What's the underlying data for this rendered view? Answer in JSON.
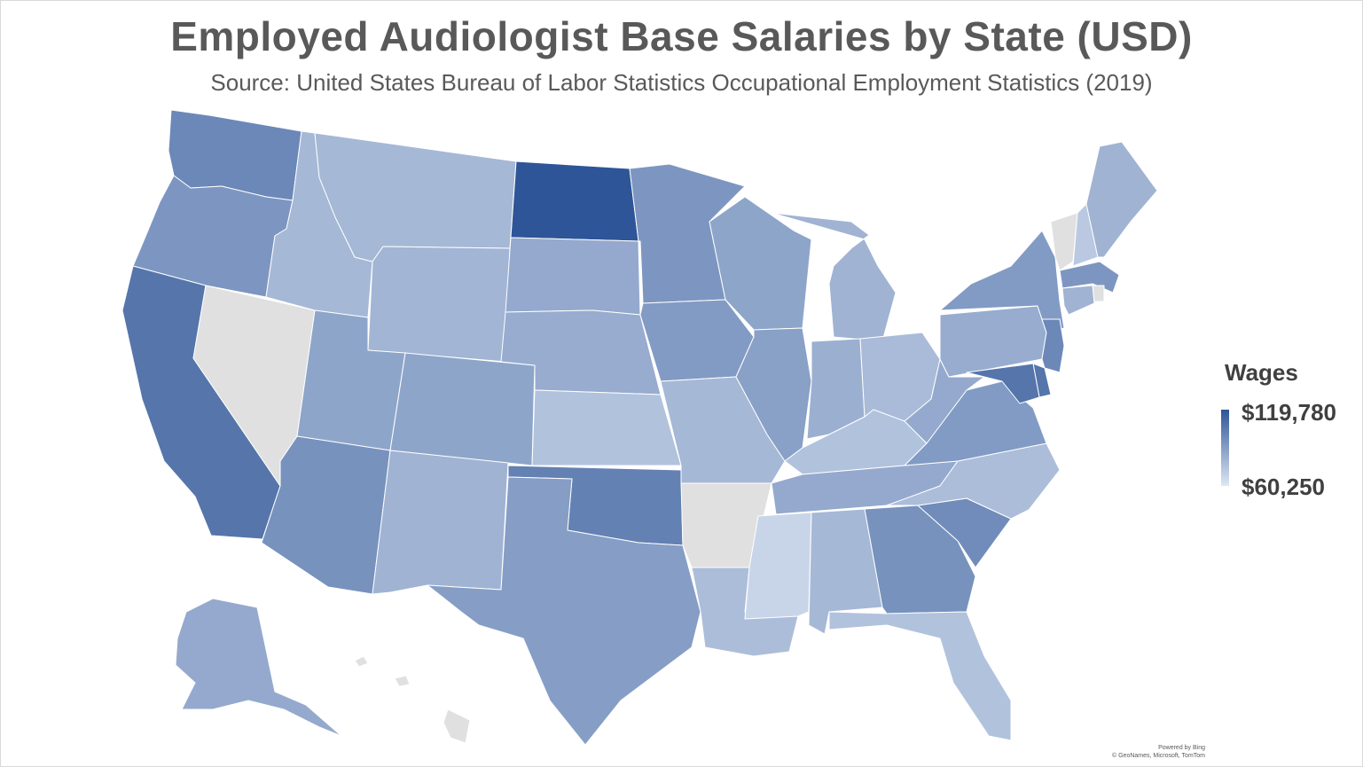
{
  "title": "Employed Audiologist Base Salaries by State (USD)",
  "subtitle": "Source: United States Bureau of Labor Statistics Occupational Employment Statistics (2019)",
  "legend": {
    "title": "Wages",
    "max_label": "$119,780",
    "min_label": "$60,250",
    "max_value": 119780,
    "min_value": 60250,
    "max_color": "#2e5597",
    "min_color": "#dde6f4",
    "no_data_color": "#e0e0e0"
  },
  "attribution": {
    "powered_by": "Powered by Bing",
    "credits": "© GeoNames, Microsoft, TomTom"
  },
  "states": [
    {
      "id": "WA",
      "shade": 0.65
    },
    {
      "id": "OR",
      "shade": 0.55
    },
    {
      "id": "CA",
      "shade": 0.78
    },
    {
      "id": "NV",
      "shade": null
    },
    {
      "id": "ID",
      "shade": 0.32
    },
    {
      "id": "MT",
      "shade": 0.32
    },
    {
      "id": "WY",
      "shade": 0.34
    },
    {
      "id": "UT",
      "shade": 0.45
    },
    {
      "id": "AZ",
      "shade": 0.58
    },
    {
      "id": "CO",
      "shade": 0.45
    },
    {
      "id": "NM",
      "shade": 0.35
    },
    {
      "id": "ND",
      "shade": 1.0
    },
    {
      "id": "SD",
      "shade": 0.42
    },
    {
      "id": "NE",
      "shade": 0.4
    },
    {
      "id": "KS",
      "shade": 0.25
    },
    {
      "id": "OK",
      "shade": 0.7
    },
    {
      "id": "TX",
      "shade": 0.5
    },
    {
      "id": "MN",
      "shade": 0.55
    },
    {
      "id": "IA",
      "shade": 0.52
    },
    {
      "id": "MO",
      "shade": 0.32
    },
    {
      "id": "AR",
      "shade": null
    },
    {
      "id": "LA",
      "shade": 0.28
    },
    {
      "id": "WI",
      "shade": 0.45
    },
    {
      "id": "IL",
      "shade": 0.48
    },
    {
      "id": "MI",
      "shade": 0.35
    },
    {
      "id": "IN",
      "shade": 0.38
    },
    {
      "id": "OH",
      "shade": 0.3
    },
    {
      "id": "KY",
      "shade": 0.25
    },
    {
      "id": "TN",
      "shade": 0.42
    },
    {
      "id": "MS",
      "shade": 0.12
    },
    {
      "id": "AL",
      "shade": 0.32
    },
    {
      "id": "GA",
      "shade": 0.58
    },
    {
      "id": "FL",
      "shade": 0.25
    },
    {
      "id": "SC",
      "shade": 0.62
    },
    {
      "id": "NC",
      "shade": 0.28
    },
    {
      "id": "VA",
      "shade": 0.52
    },
    {
      "id": "WV",
      "shade": 0.42
    },
    {
      "id": "PA",
      "shade": 0.4
    },
    {
      "id": "NY",
      "shade": 0.52
    },
    {
      "id": "VT",
      "shade": null
    },
    {
      "id": "NH",
      "shade": 0.2
    },
    {
      "id": "ME",
      "shade": 0.35
    },
    {
      "id": "MA",
      "shade": 0.55
    },
    {
      "id": "RI",
      "shade": null
    },
    {
      "id": "CT",
      "shade": 0.35
    },
    {
      "id": "NJ",
      "shade": 0.65
    },
    {
      "id": "DE",
      "shade": 0.78
    },
    {
      "id": "MD",
      "shade": 0.78
    },
    {
      "id": "AK",
      "shade": 0.42
    },
    {
      "id": "HI",
      "shade": null
    }
  ]
}
